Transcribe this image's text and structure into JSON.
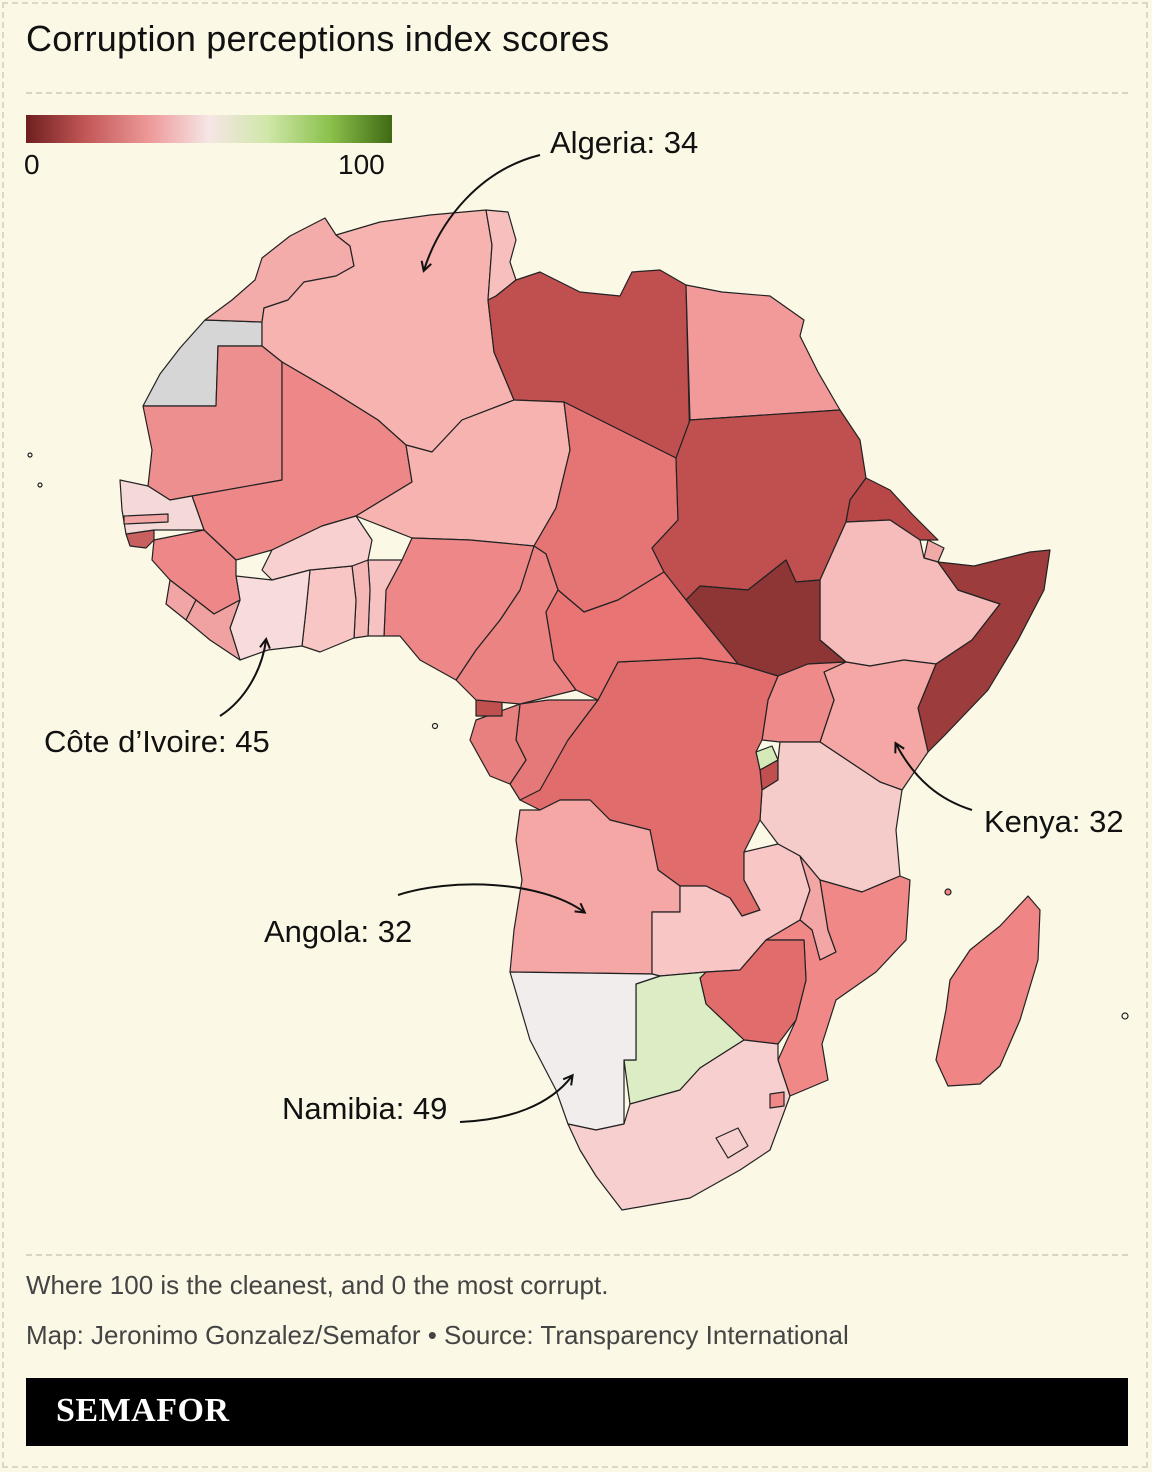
{
  "title": "Corruption perceptions index scores",
  "legend": {
    "min_label": "0",
    "max_label": "100",
    "colors": [
      "#6e1f1f",
      "#c25656",
      "#ee9a9a",
      "#f6e6e6",
      "#cfe7a8",
      "#8cc14c",
      "#3f6a13"
    ]
  },
  "annotations": {
    "algeria": "Algeria: 34",
    "cote_divoire": "Côte d’Ivoire: 45",
    "kenya": "Kenya: 32",
    "angola": "Angola: 32",
    "namibia": "Namibia: 49"
  },
  "note": "Where 100 is the cleanest, and 0 the most corrupt.",
  "credit": "Map: Jeronimo Gonzalez/Semafor • Source: Transparency International",
  "brand": "SEMAFOR",
  "colors": {
    "background": "#fbf8e6",
    "no_data": "#d6d6d6"
  }
}
